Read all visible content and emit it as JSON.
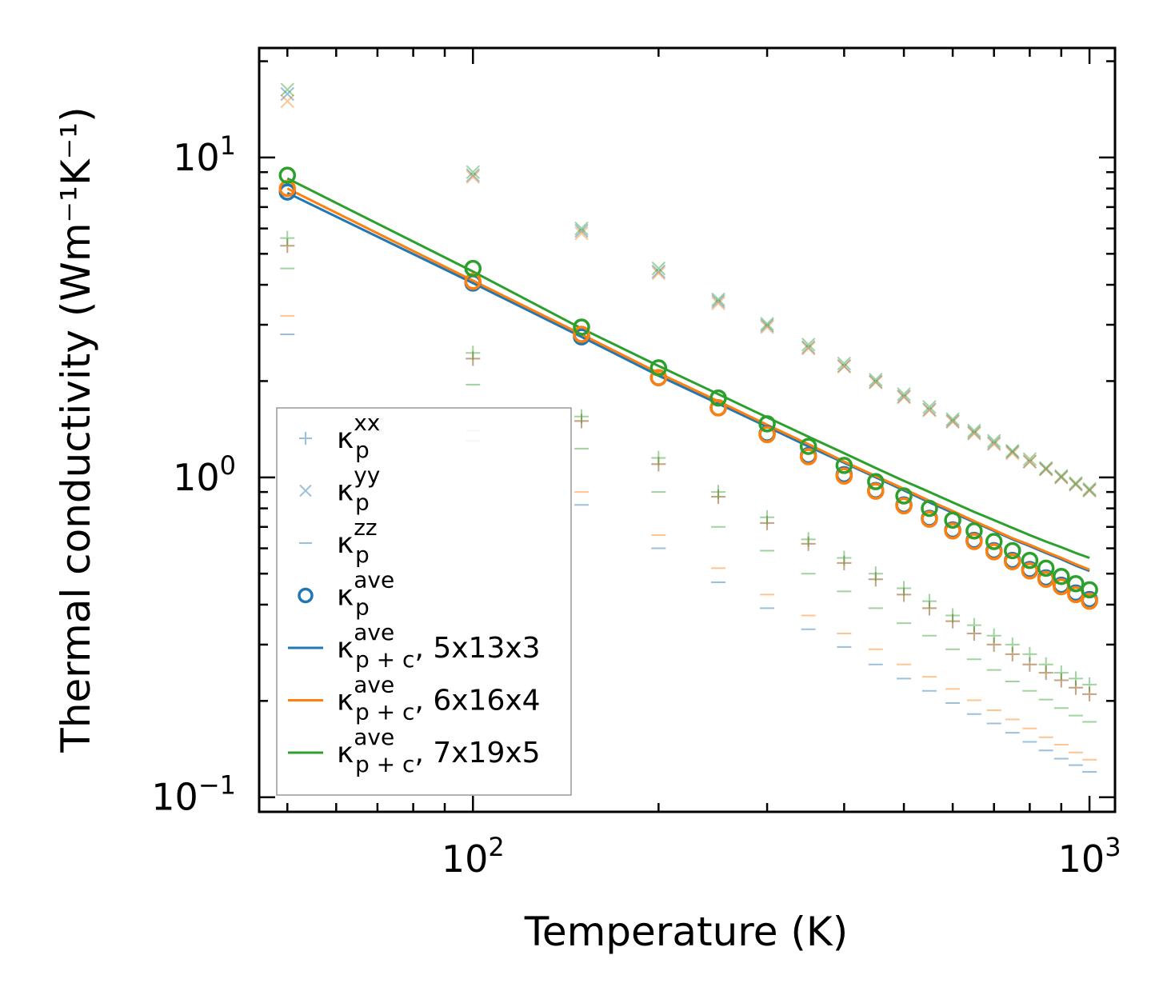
{
  "chart_data": {
    "type": "scatter",
    "xscale": "log",
    "yscale": "log",
    "xlabel": "Temperature (K)",
    "ylabel": "Thermal conductivity (Wm⁻¹K⁻¹)",
    "xlim": [
      45,
      1100
    ],
    "ylim": [
      0.09,
      22
    ],
    "xticks": [
      {
        "value": 100,
        "base": "10",
        "exp": "2"
      },
      {
        "value": 1000,
        "base": "10",
        "exp": "3"
      }
    ],
    "yticks": [
      {
        "value": 0.1,
        "base": "10",
        "exp": "−1"
      },
      {
        "value": 1,
        "base": "10",
        "exp": "0"
      },
      {
        "value": 10,
        "base": "10",
        "exp": "1"
      }
    ],
    "x": [
      50,
      100,
      150,
      200,
      250,
      300,
      350,
      400,
      450,
      500,
      550,
      600,
      650,
      700,
      750,
      800,
      850,
      900,
      950,
      1000
    ],
    "colors": {
      "blue": "#1f77b4",
      "orange": "#ff7f0e",
      "green": "#2ca02c"
    },
    "meshes": [
      {
        "name": "5x13x3",
        "color_key": "blue",
        "kxx": [
          5.3,
          2.35,
          1.5,
          1.1,
          0.87,
          0.72,
          0.62,
          0.54,
          0.48,
          0.43,
          0.39,
          0.355,
          0.325,
          0.3,
          0.28,
          0.26,
          0.245,
          0.232,
          0.22,
          0.21
        ],
        "kyy": [
          15.8,
          8.8,
          5.9,
          4.4,
          3.55,
          2.98,
          2.55,
          2.23,
          1.99,
          1.79,
          1.63,
          1.5,
          1.38,
          1.28,
          1.2,
          1.12,
          1.06,
          1.0,
          0.95,
          0.91
        ],
        "kzz": [
          2.8,
          1.3,
          0.82,
          0.6,
          0.47,
          0.39,
          0.335,
          0.295,
          0.26,
          0.235,
          0.215,
          0.197,
          0.182,
          0.17,
          0.159,
          0.149,
          0.14,
          0.132,
          0.126,
          0.12
        ],
        "kave": [
          7.8,
          4.05,
          2.75,
          2.05,
          1.65,
          1.37,
          1.17,
          1.02,
          0.91,
          0.82,
          0.745,
          0.685,
          0.635,
          0.59,
          0.55,
          0.515,
          0.485,
          0.46,
          0.435,
          0.415
        ],
        "kpc_ave": [
          7.75,
          4.05,
          2.75,
          2.08,
          1.7,
          1.44,
          1.25,
          1.11,
          1.0,
          0.91,
          0.835,
          0.775,
          0.725,
          0.68,
          0.64,
          0.61,
          0.58,
          0.555,
          0.53,
          0.51
        ]
      },
      {
        "name": "6x16x4",
        "color_key": "orange",
        "kxx": [
          5.3,
          2.35,
          1.5,
          1.1,
          0.87,
          0.72,
          0.62,
          0.54,
          0.48,
          0.43,
          0.39,
          0.355,
          0.325,
          0.3,
          0.28,
          0.26,
          0.245,
          0.232,
          0.22,
          0.21
        ],
        "kyy": [
          15.0,
          8.7,
          5.8,
          4.35,
          3.5,
          2.95,
          2.53,
          2.22,
          1.98,
          1.78,
          1.62,
          1.49,
          1.37,
          1.27,
          1.19,
          1.12,
          1.06,
          1.0,
          0.95,
          0.91
        ],
        "kzz": [
          3.2,
          1.4,
          0.9,
          0.66,
          0.52,
          0.43,
          0.37,
          0.325,
          0.29,
          0.26,
          0.238,
          0.218,
          0.201,
          0.187,
          0.175,
          0.164,
          0.154,
          0.146,
          0.138,
          0.131
        ],
        "kave": [
          8.0,
          4.1,
          2.8,
          2.05,
          1.65,
          1.36,
          1.16,
          1.01,
          0.905,
          0.815,
          0.74,
          0.68,
          0.63,
          0.585,
          0.545,
          0.51,
          0.48,
          0.455,
          0.43,
          0.41
        ],
        "kpc_ave": [
          8.0,
          4.12,
          2.8,
          2.12,
          1.73,
          1.46,
          1.27,
          1.12,
          1.01,
          0.92,
          0.845,
          0.785,
          0.73,
          0.685,
          0.645,
          0.615,
          0.585,
          0.56,
          0.535,
          0.515
        ]
      },
      {
        "name": "7x19x5",
        "color_key": "green",
        "kxx": [
          5.6,
          2.45,
          1.55,
          1.15,
          0.9,
          0.75,
          0.64,
          0.56,
          0.5,
          0.45,
          0.41,
          0.37,
          0.345,
          0.32,
          0.3,
          0.28,
          0.26,
          0.245,
          0.235,
          0.225
        ],
        "kyy": [
          16.3,
          9.0,
          6.0,
          4.5,
          3.6,
          3.02,
          2.6,
          2.27,
          2.02,
          1.82,
          1.66,
          1.52,
          1.4,
          1.3,
          1.21,
          1.14,
          1.07,
          1.01,
          0.96,
          0.92
        ],
        "kzz": [
          4.5,
          1.95,
          1.23,
          0.9,
          0.7,
          0.59,
          0.5,
          0.44,
          0.39,
          0.35,
          0.32,
          0.29,
          0.27,
          0.25,
          0.23,
          0.215,
          0.202,
          0.19,
          0.18,
          0.172
        ],
        "kave": [
          8.8,
          4.5,
          2.95,
          2.2,
          1.77,
          1.47,
          1.25,
          1.09,
          0.97,
          0.875,
          0.8,
          0.735,
          0.68,
          0.63,
          0.59,
          0.55,
          0.52,
          0.49,
          0.465,
          0.445
        ],
        "kpc_ave": [
          8.6,
          4.4,
          2.92,
          2.23,
          1.82,
          1.54,
          1.34,
          1.19,
          1.07,
          0.975,
          0.9,
          0.835,
          0.78,
          0.735,
          0.695,
          0.66,
          0.63,
          0.605,
          0.58,
          0.56
        ]
      }
    ],
    "legend": {
      "placement": "lower-left",
      "entries": [
        {
          "kind": "plus",
          "sym": "κ",
          "sub": "p",
          "sup": "xx",
          "suffix": ""
        },
        {
          "kind": "x",
          "sym": "κ",
          "sub": "p",
          "sup": "yy",
          "suffix": ""
        },
        {
          "kind": "dash",
          "sym": "κ",
          "sub": "p",
          "sup": "zz",
          "suffix": ""
        },
        {
          "kind": "circle",
          "sym": "κ",
          "sub": "p",
          "sup": "ave",
          "suffix": ""
        },
        {
          "kind": "line",
          "color_key": "blue",
          "sym": "κ",
          "sub": "p + c",
          "sup": "ave",
          "suffix": ", 5x13x3"
        },
        {
          "kind": "line",
          "color_key": "orange",
          "sym": "κ",
          "sub": "p + c",
          "sup": "ave",
          "suffix": ", 6x16x4"
        },
        {
          "kind": "line",
          "color_key": "green",
          "sym": "κ",
          "sub": "p + c",
          "sup": "ave",
          "suffix": ", 7x19x5"
        }
      ]
    }
  }
}
